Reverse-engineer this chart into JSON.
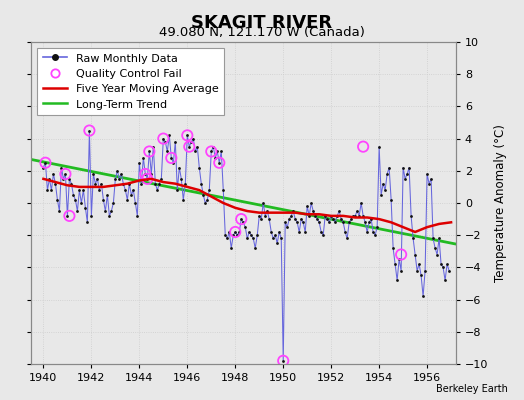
{
  "title": "SKAGIT RIVER",
  "subtitle": "49.080 N, 121.170 W (Canada)",
  "ylabel": "Temperature Anomaly (°C)",
  "credit": "Berkeley Earth",
  "xlim": [
    1939.5,
    1957.2
  ],
  "ylim": [
    -10,
    10
  ],
  "yticks": [
    -10,
    -8,
    -6,
    -4,
    -2,
    0,
    2,
    4,
    6,
    8,
    10
  ],
  "xticks": [
    1940,
    1942,
    1944,
    1946,
    1948,
    1950,
    1952,
    1954,
    1956
  ],
  "fig_bg": "#e8e8e8",
  "plot_bg": "#e8e8e8",
  "grid_color": "#cccccc",
  "raw_line_color": "#6666dd",
  "dot_color": "#111111",
  "ma_color": "#dd0000",
  "trend_color": "#22bb22",
  "qc_color": "#ff44ff",
  "title_fontsize": 13,
  "subtitle_fontsize": 9.5,
  "legend_fontsize": 8,
  "ylabel_fontsize": 8.5,
  "tick_fontsize": 8,
  "trend_x": [
    1939.5,
    1957.2
  ],
  "trend_y": [
    2.7,
    -2.55
  ],
  "raw_x": [
    1940.0,
    1940.083,
    1940.167,
    1940.25,
    1940.333,
    1940.417,
    1940.5,
    1940.583,
    1940.667,
    1940.75,
    1940.833,
    1940.917,
    1941.0,
    1941.083,
    1941.167,
    1941.25,
    1941.333,
    1941.417,
    1941.5,
    1941.583,
    1941.667,
    1941.75,
    1941.833,
    1941.917,
    1942.0,
    1942.083,
    1942.167,
    1942.25,
    1942.333,
    1942.417,
    1942.5,
    1942.583,
    1942.667,
    1942.75,
    1942.833,
    1942.917,
    1943.0,
    1943.083,
    1943.167,
    1943.25,
    1943.333,
    1943.417,
    1943.5,
    1943.583,
    1943.667,
    1943.75,
    1943.833,
    1943.917,
    1944.0,
    1944.083,
    1944.167,
    1944.25,
    1944.333,
    1944.417,
    1944.5,
    1944.583,
    1944.667,
    1944.75,
    1944.833,
    1944.917,
    1945.0,
    1945.083,
    1945.167,
    1945.25,
    1945.333,
    1945.417,
    1945.5,
    1945.583,
    1945.667,
    1945.75,
    1945.833,
    1945.917,
    1946.0,
    1946.083,
    1946.167,
    1946.25,
    1946.333,
    1946.417,
    1946.5,
    1946.583,
    1946.667,
    1946.75,
    1946.833,
    1946.917,
    1947.0,
    1947.083,
    1947.167,
    1947.25,
    1947.333,
    1947.417,
    1947.5,
    1947.583,
    1947.667,
    1947.75,
    1947.833,
    1947.917,
    1948.0,
    1948.083,
    1948.167,
    1948.25,
    1948.333,
    1948.417,
    1948.5,
    1948.583,
    1948.667,
    1948.75,
    1948.833,
    1948.917,
    1949.0,
    1949.083,
    1949.167,
    1949.25,
    1949.333,
    1949.417,
    1949.5,
    1949.583,
    1949.667,
    1949.75,
    1949.833,
    1949.917,
    1950.0,
    1950.083,
    1950.167,
    1950.25,
    1950.333,
    1950.417,
    1950.5,
    1950.583,
    1950.667,
    1950.75,
    1950.833,
    1950.917,
    1951.0,
    1951.083,
    1951.167,
    1951.25,
    1951.333,
    1951.417,
    1951.5,
    1951.583,
    1951.667,
    1951.75,
    1951.833,
    1951.917,
    1952.0,
    1952.083,
    1952.167,
    1952.25,
    1952.333,
    1952.417,
    1952.5,
    1952.583,
    1952.667,
    1952.75,
    1952.833,
    1952.917,
    1953.0,
    1953.083,
    1953.167,
    1953.25,
    1953.333,
    1953.417,
    1953.5,
    1953.583,
    1953.667,
    1953.75,
    1953.833,
    1953.917,
    1954.0,
    1954.083,
    1954.167,
    1954.25,
    1954.333,
    1954.417,
    1954.5,
    1954.583,
    1954.667,
    1954.75,
    1954.833,
    1954.917,
    1955.0,
    1955.083,
    1955.167,
    1955.25,
    1955.333,
    1955.417,
    1955.5,
    1955.583,
    1955.667,
    1955.75,
    1955.833,
    1955.917,
    1956.0,
    1956.083,
    1956.167,
    1956.25,
    1956.333,
    1956.417,
    1956.5,
    1956.583,
    1956.667,
    1956.75,
    1956.833,
    1956.917
  ],
  "raw_y": [
    2.2,
    2.5,
    0.8,
    1.5,
    0.8,
    1.8,
    1.2,
    0.2,
    -0.5,
    2.2,
    1.5,
    1.8,
    -0.8,
    1.5,
    1.2,
    0.5,
    0.2,
    -0.5,
    0.8,
    0.0,
    0.8,
    -0.3,
    -1.2,
    4.5,
    -0.8,
    1.8,
    1.2,
    1.5,
    0.8,
    1.2,
    0.2,
    -0.5,
    0.5,
    -0.8,
    -0.5,
    0.0,
    1.5,
    2.0,
    1.5,
    1.8,
    1.2,
    0.8,
    0.2,
    1.2,
    0.5,
    0.8,
    0.0,
    -0.8,
    2.5,
    1.2,
    2.8,
    1.8,
    1.5,
    3.2,
    1.8,
    3.5,
    1.2,
    0.8,
    1.2,
    1.5,
    4.0,
    3.8,
    3.2,
    4.2,
    2.8,
    2.5,
    3.8,
    0.8,
    2.2,
    1.5,
    0.2,
    1.2,
    4.2,
    3.5,
    3.8,
    4.0,
    3.2,
    3.5,
    2.2,
    1.2,
    0.5,
    0.0,
    0.2,
    0.8,
    3.2,
    3.5,
    2.8,
    3.2,
    2.5,
    3.2,
    0.8,
    -2.0,
    -2.2,
    -1.8,
    -2.8,
    -2.0,
    -1.8,
    -2.0,
    -1.8,
    -1.0,
    -1.2,
    -1.5,
    -2.2,
    -1.8,
    -2.0,
    -2.2,
    -2.8,
    -2.0,
    -0.8,
    -1.0,
    0.0,
    -0.8,
    -0.5,
    -1.0,
    -1.8,
    -2.2,
    -2.0,
    -2.5,
    -1.8,
    -2.2,
    -9.8,
    -1.2,
    -1.5,
    -1.0,
    -0.8,
    -0.5,
    -1.0,
    -1.2,
    -1.8,
    -1.0,
    -1.2,
    -1.8,
    -0.2,
    -0.8,
    0.0,
    -0.5,
    -0.8,
    -1.0,
    -1.2,
    -1.8,
    -2.0,
    -0.8,
    -1.0,
    -1.2,
    -0.8,
    -1.0,
    -1.2,
    -0.8,
    -0.5,
    -1.0,
    -1.2,
    -1.8,
    -2.2,
    -1.2,
    -1.0,
    -0.8,
    -0.8,
    -0.5,
    -0.8,
    0.0,
    -0.8,
    -1.2,
    -1.8,
    -1.2,
    -1.0,
    -1.8,
    -2.0,
    -1.5,
    3.5,
    0.5,
    1.2,
    0.8,
    1.8,
    2.2,
    0.2,
    -2.8,
    -3.8,
    -4.8,
    -3.5,
    -4.2,
    2.2,
    1.5,
    1.8,
    2.2,
    -0.8,
    -2.2,
    -3.2,
    -4.2,
    -3.8,
    -4.5,
    -5.8,
    -4.2,
    1.8,
    1.2,
    1.5,
    -2.2,
    -2.8,
    -3.2,
    -2.2,
    -3.8,
    -4.0,
    -4.8,
    -3.8,
    -4.2
  ],
  "qc_x": [
    1940.083,
    1940.917,
    1941.083,
    1941.917,
    1944.25,
    1944.333,
    1944.417,
    1945.0,
    1945.333,
    1946.0,
    1946.083,
    1947.0,
    1947.333,
    1948.0,
    1948.25,
    1950.0,
    1953.333,
    1954.917
  ],
  "qc_y": [
    2.5,
    1.8,
    -0.8,
    4.5,
    1.8,
    1.5,
    3.2,
    4.0,
    2.8,
    4.2,
    3.5,
    3.2,
    2.5,
    -1.8,
    -1.0,
    -9.8,
    3.5,
    -3.2
  ],
  "ma_x": [
    1940.0,
    1940.5,
    1941.0,
    1941.5,
    1942.0,
    1942.5,
    1943.0,
    1943.5,
    1944.0,
    1944.5,
    1945.0,
    1945.5,
    1946.0,
    1946.5,
    1947.0,
    1947.5,
    1948.0,
    1948.5,
    1949.0,
    1949.5,
    1950.0,
    1950.5,
    1951.0,
    1951.5,
    1952.0,
    1952.5,
    1953.0,
    1953.5,
    1954.0,
    1954.5,
    1955.0,
    1955.5,
    1956.0,
    1956.5,
    1957.0
  ],
  "ma_y": [
    1.5,
    1.3,
    1.1,
    1.0,
    1.0,
    1.0,
    1.1,
    1.2,
    1.4,
    1.5,
    1.3,
    1.2,
    1.0,
    0.8,
    0.4,
    0.0,
    -0.3,
    -0.5,
    -0.6,
    -0.6,
    -0.6,
    -0.6,
    -0.7,
    -0.7,
    -0.8,
    -0.8,
    -0.9,
    -0.9,
    -1.0,
    -1.2,
    -1.5,
    -1.8,
    -1.5,
    -1.3,
    -1.2
  ]
}
